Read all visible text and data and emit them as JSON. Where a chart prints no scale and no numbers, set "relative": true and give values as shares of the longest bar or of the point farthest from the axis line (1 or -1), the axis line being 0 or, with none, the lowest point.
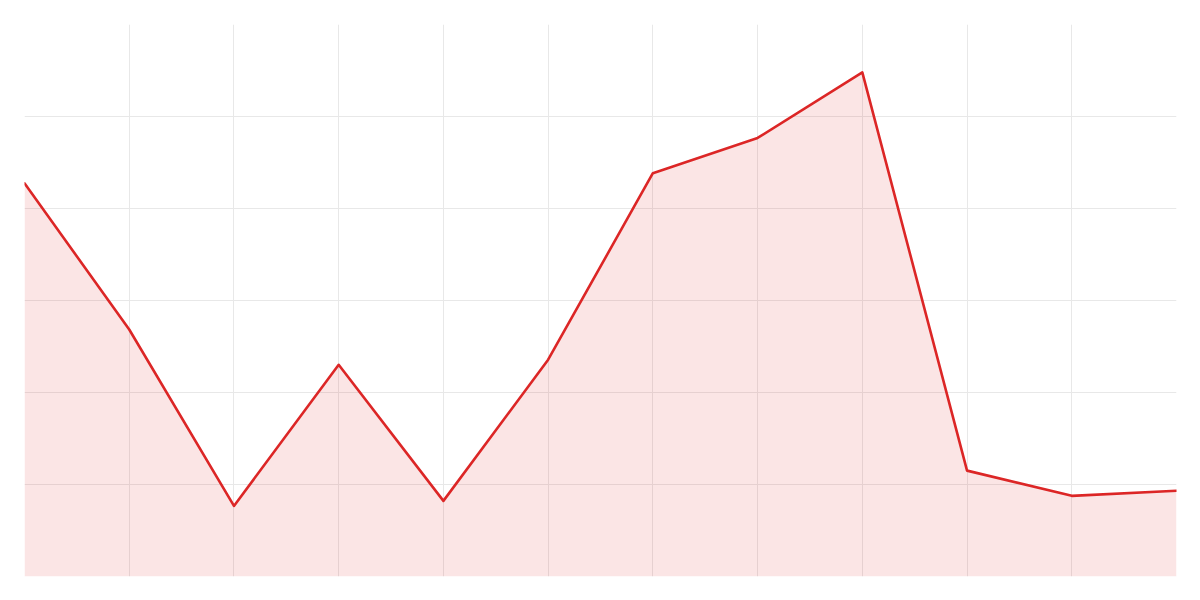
{
  "chart_data": {
    "type": "area",
    "categories": [
      null,
      null,
      null,
      null,
      null,
      null,
      null,
      null,
      null,
      null,
      null,
      null
    ],
    "series": [
      {
        "color": "#dc2626",
        "values": [
          0.78,
          0.49,
          0.14,
          0.42,
          0.15,
          0.43,
          0.8,
          0.87,
          1,
          0.21,
          0.16,
          0.17
        ]
      }
    ],
    "relative": true,
    "grid": true
  }
}
